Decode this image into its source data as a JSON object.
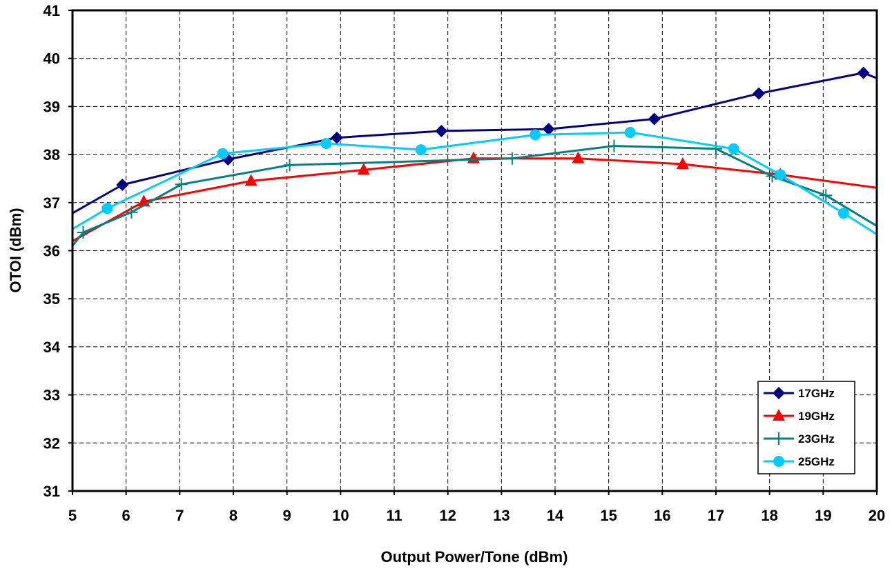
{
  "chart_data": {
    "type": "line",
    "title": "",
    "xlabel": "Output Power/Tone (dBm)",
    "ylabel": "OTOI (dBm)",
    "xlim": [
      5,
      20
    ],
    "ylim": [
      31,
      41
    ],
    "x_ticks": [
      "5",
      "6",
      "7",
      "8",
      "9",
      "10",
      "11",
      "12",
      "13",
      "14",
      "15",
      "16",
      "17",
      "18",
      "19",
      "20"
    ],
    "y_ticks": [
      "31",
      "32",
      "33",
      "34",
      "35",
      "36",
      "37",
      "38",
      "39",
      "40",
      "41"
    ],
    "grid": true,
    "legend_position": "bottom-right",
    "series": [
      {
        "name": "17GHz",
        "color": "#000080",
        "marker": "diamond",
        "points": [
          [
            5.0,
            36.78
          ],
          [
            5.93,
            37.37
          ],
          [
            7.9,
            37.9
          ],
          [
            9.93,
            38.35
          ],
          [
            11.88,
            38.49
          ],
          [
            13.88,
            38.53
          ],
          [
            15.85,
            38.74
          ],
          [
            17.8,
            39.27
          ],
          [
            19.75,
            39.7
          ],
          [
            20.2,
            39.5
          ]
        ]
      },
      {
        "name": "19GHz",
        "color": "#ff0000",
        "marker": "triangle",
        "points": [
          [
            5.0,
            36.2
          ],
          [
            6.33,
            37.02
          ],
          [
            8.33,
            37.45
          ],
          [
            10.43,
            37.68
          ],
          [
            12.48,
            37.92
          ],
          [
            14.43,
            37.92
          ],
          [
            16.38,
            37.8
          ],
          [
            18.2,
            37.58
          ],
          [
            20.2,
            37.28
          ]
        ]
      },
      {
        "name": "23GHz",
        "color": "#008080",
        "marker": "plus",
        "points": [
          [
            5.0,
            36.1
          ],
          [
            5.2,
            36.38
          ],
          [
            6.1,
            36.8
          ],
          [
            7.03,
            37.38
          ],
          [
            9.05,
            37.78
          ],
          [
            13.2,
            37.92
          ],
          [
            15.1,
            38.18
          ],
          [
            17.0,
            38.12
          ],
          [
            18.05,
            37.55
          ],
          [
            19.05,
            37.15
          ],
          [
            20.2,
            36.38
          ]
        ]
      },
      {
        "name": "25GHz",
        "color": "#00ccff",
        "marker": "circle",
        "points": [
          [
            5.0,
            36.45
          ],
          [
            5.65,
            36.88
          ],
          [
            7.8,
            38.02
          ],
          [
            9.73,
            38.23
          ],
          [
            11.5,
            38.1
          ],
          [
            13.63,
            38.41
          ],
          [
            15.4,
            38.46
          ],
          [
            17.33,
            38.12
          ],
          [
            18.2,
            37.58
          ],
          [
            19.38,
            36.78
          ],
          [
            20.2,
            36.2
          ]
        ]
      }
    ]
  }
}
